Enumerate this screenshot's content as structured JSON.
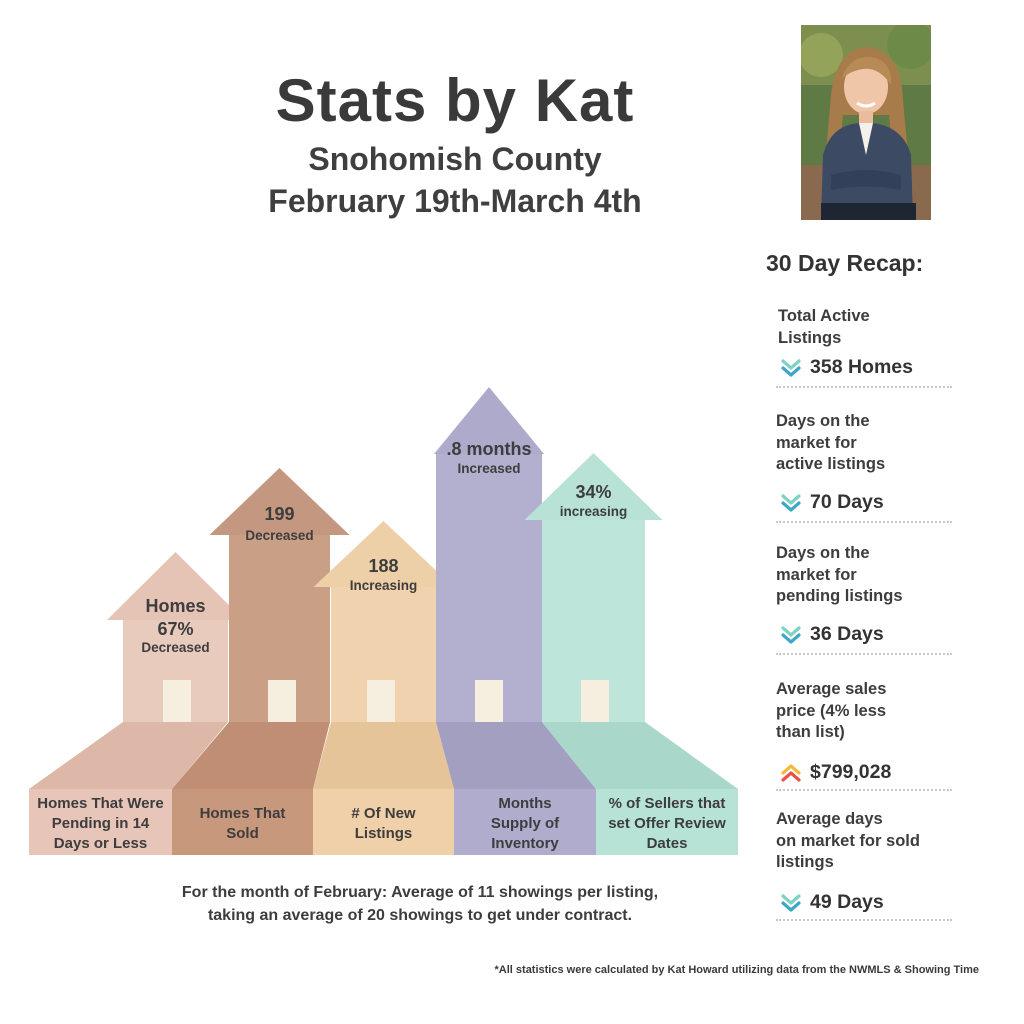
{
  "header": {
    "title": "Stats by Kat",
    "subtitle": "Snohomish County",
    "dates": "February 19th-March 4th"
  },
  "recap": {
    "title": "30 Day Recap:",
    "items": [
      {
        "label_lines": [
          "Total Active",
          "Listings"
        ],
        "value": "358 Homes",
        "trend": "down"
      },
      {
        "label_lines": [
          "Days on the",
          "market for",
          "active listings"
        ],
        "value": "70 Days",
        "trend": "down"
      },
      {
        "label_lines": [
          "Days on the",
          "market for",
          "pending listings"
        ],
        "value": "36 Days",
        "trend": "down"
      },
      {
        "label_lines": [
          "Average sales",
          "price (4% less",
          "than list)"
        ],
        "value": "$799,028",
        "trend": "up"
      },
      {
        "label_lines": [
          "Average days",
          "on market for sold",
          "listings"
        ],
        "value": "49 Days",
        "trend": "down"
      }
    ]
  },
  "houses": [
    {
      "value_lines": [
        "Homes",
        "67%"
      ],
      "status": "Decreased",
      "base_lines": [
        "Homes That Were",
        "Pending in 14",
        "Days or Less"
      ],
      "colors": {
        "body": "#e9cbbd",
        "roof": "#e5c4b6",
        "base": "#e7c5b8",
        "ramp": "#ddb7a7"
      }
    },
    {
      "value_lines": [
        "199"
      ],
      "status": "Decreased",
      "base_lines": [
        "Homes That",
        "Sold"
      ],
      "colors": {
        "body": "#c99f86",
        "roof": "#c49880",
        "base": "#c8987d",
        "ramp": "#bf8e74"
      }
    },
    {
      "value_lines": [
        "188"
      ],
      "status": "Increasing",
      "base_lines": [
        "# Of New",
        "Listings"
      ],
      "colors": {
        "body": "#f0d3ae",
        "roof": "#edcfa8",
        "base": "#efd0a8",
        "ramp": "#e4c498"
      }
    },
    {
      "value_lines": [
        ".8 months"
      ],
      "status": "Increased",
      "base_lines": [
        "Months",
        "Supply of",
        "Inventory"
      ],
      "colors": {
        "body": "#b3b0cf",
        "roof": "#aeaacb",
        "base": "#b0accd",
        "ramp": "#a29fc1"
      }
    },
    {
      "value_lines": [
        "34%"
      ],
      "status": "increasing",
      "base_lines": [
        "% of Sellers that",
        "set Offer Review",
        "Dates"
      ],
      "colors": {
        "body": "#bde5da",
        "roof": "#b8e2d6",
        "base": "#b7e3d6",
        "ramp": "#a9d8cb"
      }
    }
  ],
  "footer": {
    "line1": "For the month of February: Average of 11 showings per listing,",
    "line2": "taking an average of 20 showings to get under contract.",
    "credit": "*All statistics were calculated by Kat Howard utilizing data from the NWMLS & Showing Time"
  },
  "icons": {
    "down_arrow": "double-chevron-down-icon",
    "up_arrow": "double-chevron-up-icon",
    "down_colors": [
      "#7fd1c3",
      "#3ea7c9"
    ],
    "up_colors": [
      "#f5b93a",
      "#e8524a"
    ]
  }
}
